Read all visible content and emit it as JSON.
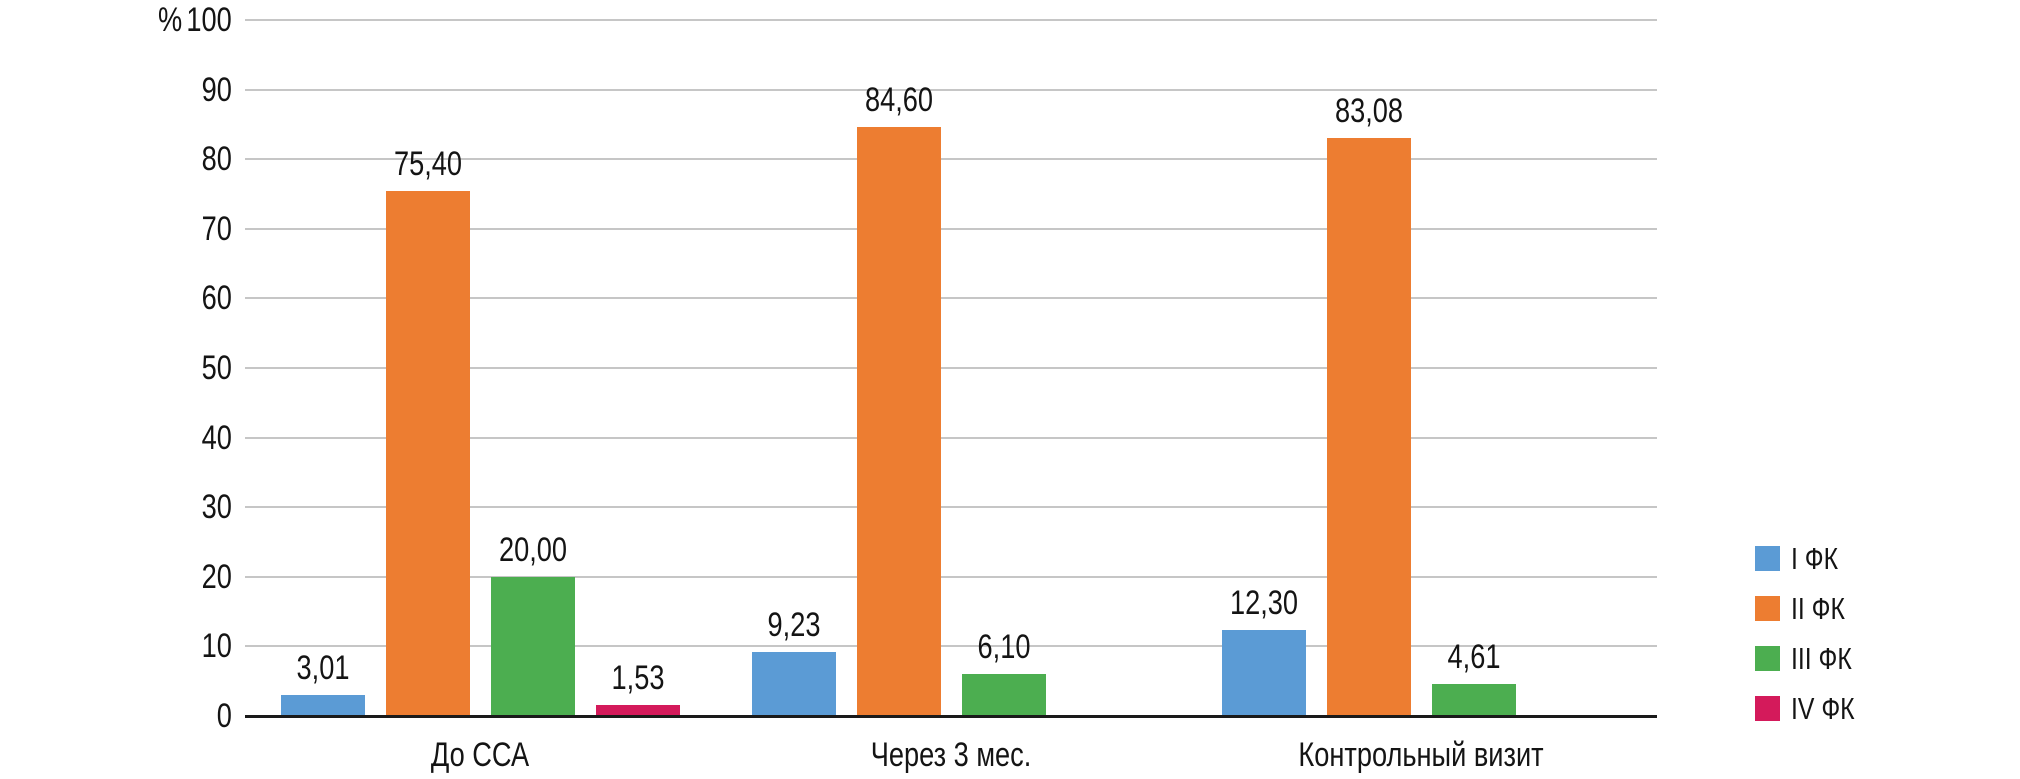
{
  "chart_data": {
    "type": "bar",
    "title": "",
    "xlabel": "",
    "ylabel": "%",
    "ylim": [
      0,
      100
    ],
    "ytick_step": 10,
    "grid": true,
    "legend_position": "right",
    "categories": [
      "До ССА",
      "Через 3 мес.",
      "Контрольный визит"
    ],
    "series": [
      {
        "name": "I ФК",
        "color": "#5B9BD5",
        "values": [
          3.01,
          9.23,
          12.3
        ],
        "labels": [
          "3,01",
          "9,23",
          "12,30"
        ]
      },
      {
        "name": "II ФК",
        "color": "#ED7D31",
        "values": [
          75.4,
          84.6,
          83.08
        ],
        "labels": [
          "75,40",
          "84,60",
          "83,08"
        ]
      },
      {
        "name": "III ФК",
        "color": "#4CAE50",
        "values": [
          20.0,
          6.1,
          4.61
        ],
        "labels": [
          "20,00",
          "6,10",
          "4,61"
        ]
      },
      {
        "name": "IV ФК",
        "color": "#D41A5B",
        "values": [
          1.53,
          0,
          0
        ],
        "labels": [
          "1,53",
          "",
          ""
        ]
      }
    ]
  }
}
